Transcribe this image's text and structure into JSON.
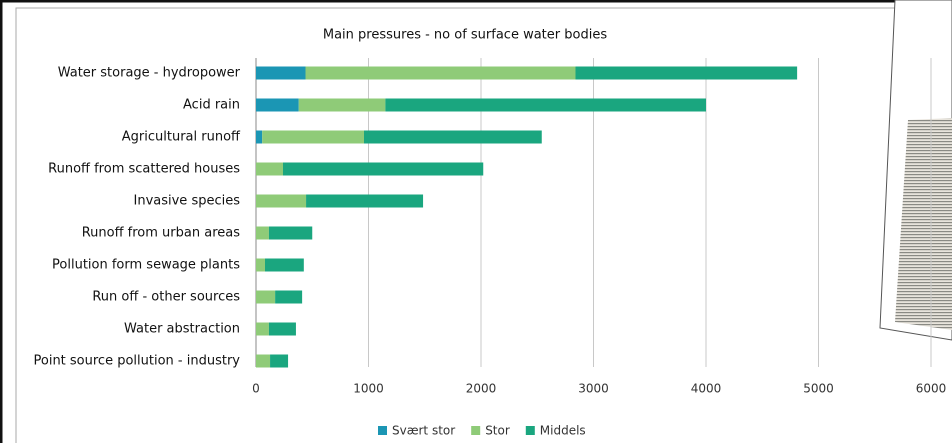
{
  "chart_data": {
    "type": "stacked-bar-horizontal",
    "title": "Main pressures - no of surface water bodies",
    "categories": [
      "Water storage - hydropower",
      "Acid rain",
      "Agricultural runoff",
      "Runoff from scattered houses",
      "Invasive species",
      "Runoff from urban areas",
      "Pollution form sewage plants",
      "Run off - other sources",
      "Water abstraction",
      "Point source pollution - industry"
    ],
    "series": [
      {
        "name": "Svært stor",
        "color": "#1b96b4",
        "values": [
          440,
          380,
          55,
          0,
          0,
          0,
          0,
          0,
          0,
          0
        ]
      },
      {
        "name": "Stor",
        "color": "#8fcb78",
        "values": [
          2400,
          770,
          905,
          240,
          445,
          115,
          80,
          170,
          115,
          125
        ]
      },
      {
        "name": "Middels",
        "color": "#1aa67f",
        "values": [
          1970,
          2850,
          1580,
          1780,
          1040,
          385,
          345,
          240,
          240,
          160
        ]
      }
    ],
    "xlim": [
      0,
      6000
    ],
    "xticks": [
      0,
      1000,
      2000,
      3000,
      4000,
      5000,
      6000
    ],
    "grid": true,
    "legend": "bottom"
  }
}
